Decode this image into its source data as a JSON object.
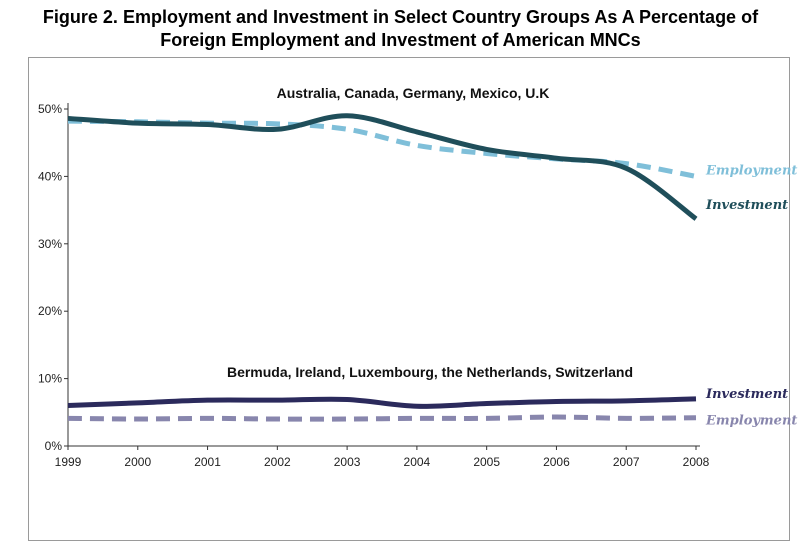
{
  "title_line1": "Figure 2. Employment and Investment in Select Country Groups As A Percentage of",
  "title_line2": "Foreign Employment and Investment of American MNCs",
  "chart_data": {
    "type": "line",
    "x": [
      1999,
      2000,
      2001,
      2002,
      2003,
      2004,
      2005,
      2006,
      2007,
      2008
    ],
    "ylim": [
      0,
      50
    ],
    "y_ticks": [
      "0%",
      "10%",
      "20%",
      "30%",
      "40%",
      "50%"
    ],
    "x_ticks": [
      "1999",
      "2000",
      "2001",
      "2002",
      "2003",
      "2004",
      "2005",
      "2006",
      "2007",
      "2008"
    ],
    "grid": false,
    "groups": [
      {
        "label": "Australia, Canada, Germany, Mexico, U.K",
        "series": [
          {
            "name": "Employment",
            "style": "dashed",
            "color": "#7fbfd9",
            "values": [
              48.2,
              48.1,
              47.9,
              47.8,
              47.0,
              44.6,
              43.4,
              42.6,
              41.9,
              40.0
            ]
          },
          {
            "name": "Investment",
            "style": "solid",
            "color": "#1f4e5a",
            "values": [
              48.6,
              47.9,
              47.7,
              47.0,
              49.0,
              46.6,
              44.0,
              42.7,
              41.2,
              33.7
            ]
          }
        ]
      },
      {
        "label": "Bermuda, Ireland, Luxembourg, the Netherlands, Switzerland",
        "series": [
          {
            "name": "Investment",
            "style": "solid",
            "color": "#2b2a5c",
            "values": [
              6.0,
              6.4,
              6.8,
              6.8,
              6.9,
              5.9,
              6.3,
              6.6,
              6.7,
              7.0
            ]
          },
          {
            "name": "Employment",
            "style": "dashed",
            "color": "#8886ad",
            "values": [
              4.1,
              4.0,
              4.1,
              4.0,
              4.0,
              4.1,
              4.1,
              4.3,
              4.1,
              4.2
            ]
          }
        ]
      }
    ]
  }
}
